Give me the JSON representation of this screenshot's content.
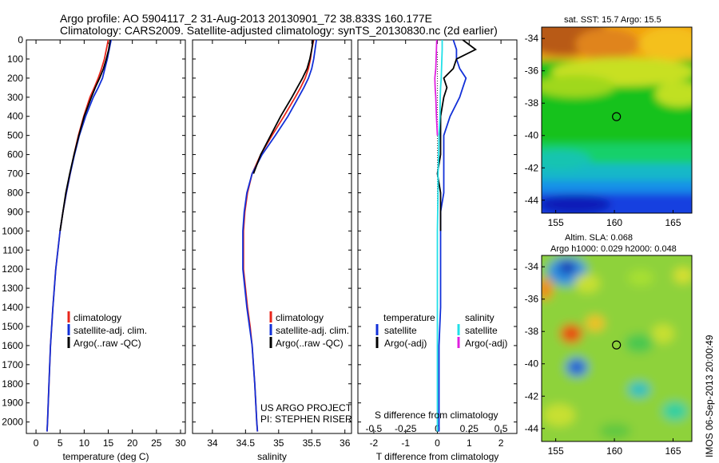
{
  "header": {
    "line1": "Argo profile: AO 5904117_2 31-Aug-2013 20130901_72 38.833S 160.177E",
    "line2": "Climatology: CARS2009. Satellite-adjusted climatology: synTS_20130830.nc (2d earlier)"
  },
  "vertical_stamp": "IMOS 06-Sep-2013 20:00:49",
  "colors": {
    "red": "#e8261b",
    "blue": "#1230d8",
    "black": "#000000",
    "cyan": "#22e0e8",
    "magenta": "#e020e0"
  },
  "chart_data": [
    {
      "type": "line",
      "xlabel": "temperature (deg C)",
      "xlim": [
        -2,
        31
      ],
      "ylim": [
        2060,
        0
      ],
      "xticks": [
        "0",
        "5",
        "10",
        "15",
        "20",
        "25",
        "30"
      ],
      "xtick_values": [
        0,
        5,
        10,
        15,
        20,
        25,
        30
      ],
      "yticks": [
        "0",
        "100",
        "200",
        "300",
        "400",
        "500",
        "600",
        "700",
        "800",
        "900",
        "1000",
        "1100",
        "1200",
        "1300",
        "1400",
        "1500",
        "1600",
        "1700",
        "1800",
        "1900",
        "2000"
      ],
      "legend": [
        "climatology",
        "satellite-adj. clim.",
        "Argo(..raw -QC)"
      ],
      "depth": [
        0,
        50,
        100,
        150,
        200,
        250,
        300,
        400,
        500,
        600,
        700,
        800,
        900,
        1000,
        1200,
        1400,
        1600,
        1800,
        2000,
        2050
      ],
      "series": [
        {
          "name": "climatology",
          "color": "red",
          "values": [
            15,
            14.6,
            14.2,
            13.6,
            12.9,
            12.1,
            11.2,
            9.9,
            8.8,
            7.9,
            7.1,
            6.3,
            5.6,
            5.0,
            4.1,
            3.5,
            3.0,
            2.7,
            2.4,
            2.3
          ]
        },
        {
          "name": "satellite-adj. clim.",
          "color": "blue",
          "values": [
            15.6,
            15.2,
            14.8,
            14.3,
            13.8,
            12.9,
            11.9,
            10.3,
            9.0,
            8.0,
            7.1,
            6.3,
            5.6,
            5.0,
            4.1,
            3.5,
            3.0,
            2.7,
            2.4,
            2.3
          ]
        },
        {
          "name": "Argo(..raw -QC)",
          "color": "black",
          "values": [
            15.4,
            15.1,
            14.6,
            14.0,
            13.2,
            12.3,
            11.5,
            10.0,
            8.9,
            7.9,
            7.0,
            6.2,
            5.6,
            5.0,
            null,
            null,
            null,
            null,
            null,
            null
          ]
        }
      ]
    },
    {
      "type": "line",
      "xlabel": "salinity",
      "xlim": [
        33.7,
        36.1
      ],
      "ylim": [
        2060,
        0
      ],
      "xticks": [
        "34",
        "34.5",
        "35",
        "35.5",
        "36"
      ],
      "xtick_values": [
        34,
        34.5,
        35,
        35.5,
        36
      ],
      "legend": [
        "climatology",
        "satellite-adj. clim.",
        "Argo(..raw -QC)"
      ],
      "annotation": [
        "US ARGO PROJECT",
        "PI: STEPHEN RISER"
      ],
      "depth": [
        0,
        50,
        100,
        150,
        200,
        250,
        300,
        400,
        500,
        600,
        700,
        800,
        900,
        1000,
        1100,
        1200,
        1300,
        1400,
        1500,
        1600,
        1800,
        2000,
        2050
      ],
      "series": [
        {
          "name": "climatology",
          "color": "red",
          "values": [
            35.53,
            35.5,
            35.48,
            35.45,
            35.4,
            35.33,
            35.25,
            35.08,
            34.9,
            34.73,
            34.6,
            34.53,
            34.49,
            34.47,
            34.47,
            34.47,
            34.5,
            34.53,
            34.57,
            34.6,
            34.64,
            34.67,
            34.68
          ]
        },
        {
          "name": "satellite-adj. clim.",
          "color": "blue",
          "values": [
            35.57,
            35.55,
            35.53,
            35.5,
            35.45,
            35.38,
            35.3,
            35.14,
            34.95,
            34.75,
            34.6,
            34.52,
            34.48,
            34.46,
            34.46,
            34.46,
            34.49,
            34.52,
            34.56,
            34.6,
            34.64,
            34.67,
            34.68
          ]
        },
        {
          "name": "Argo(..raw -QC)",
          "color": "black",
          "values": [
            35.52,
            35.5,
            35.47,
            35.43,
            35.36,
            35.28,
            35.2,
            35.03,
            34.88,
            34.73,
            34.62,
            null,
            null,
            null,
            null,
            null,
            null,
            null,
            null,
            null,
            null,
            null,
            null
          ]
        }
      ]
    },
    {
      "type": "line",
      "xlabel": "T difference from climatology",
      "xlabel_top": "S difference from climatology",
      "xlim": [
        -2.5,
        2.5
      ],
      "ylim": [
        2060,
        0
      ],
      "xticks": [
        "-2",
        "-1",
        "0",
        "1",
        "2"
      ],
      "xtick_values": [
        -2,
        -1,
        0,
        1,
        2
      ],
      "sticks": [
        "-0.5",
        "-0.25",
        "0",
        "0.25",
        "0.5"
      ],
      "stick_values": [
        -0.5,
        -0.25,
        0,
        0.25,
        0.5
      ],
      "legend_left_title": "temperature",
      "legend_left": [
        "satellite",
        "Argo(-adj)"
      ],
      "legend_right_title": "salinity",
      "legend_right": [
        "satellite",
        "Argo(-adj)"
      ],
      "depth": [
        0,
        50,
        100,
        150,
        200,
        250,
        300,
        400,
        500,
        600,
        700,
        800,
        900,
        1000,
        1200,
        1400,
        1600,
        1800,
        2000,
        2050
      ],
      "series": [
        {
          "name": "satellite",
          "group": "temperature",
          "color": "blue",
          "values": [
            0.5,
            0.6,
            0.6,
            0.7,
            0.9,
            0.8,
            0.7,
            0.4,
            0.2,
            0.2,
            0.2,
            0.2,
            0.1,
            0.1,
            0.1,
            0.1,
            0.05,
            0.05,
            0.05,
            0.05
          ]
        },
        {
          "name": "Argo(-adj)",
          "group": "temperature",
          "color": "black",
          "values": [
            0.8,
            1.2,
            0.6,
            0.5,
            0.2,
            0.3,
            0.2,
            0.1,
            0.1,
            0.1,
            0.0,
            0.1,
            0.1,
            0.1,
            null,
            null,
            null,
            null,
            null,
            null
          ]
        },
        {
          "name": "satellite",
          "group": "salinity",
          "color": "cyan",
          "values": [
            0.15,
            0.15,
            0.14,
            0.13,
            0.12,
            0.1,
            0.09,
            0.08,
            0.05,
            0.04,
            0.02,
            0.02,
            0.01,
            0.0,
            0.0,
            0.0,
            0.0,
            0.0,
            0.0,
            0.0
          ]
        },
        {
          "name": "Argo(-adj)",
          "group": "salinity",
          "color": "magenta",
          "values": [
            -0.02,
            -0.03,
            -0.04,
            -0.05,
            -0.08,
            -0.07,
            -0.05,
            -0.03,
            0.0,
            null,
            null,
            null,
            null,
            null,
            null,
            null,
            null,
            null,
            null,
            null
          ]
        }
      ]
    },
    {
      "type": "heatmap",
      "title": "sat. SST: 15.7 Argo: 15.5",
      "xlim": [
        153.8,
        166.6
      ],
      "ylim": [
        -44.8,
        -33.3
      ],
      "xticks": [
        "155",
        "160",
        "165"
      ],
      "xtick_values": [
        155,
        160,
        165
      ],
      "yticks": [
        "-34",
        "-36",
        "-38",
        "-40",
        "-42",
        "-44"
      ],
      "ytick_values": [
        -34,
        -36,
        -38,
        -40,
        -42,
        -44
      ],
      "float": {
        "lon": 160.177,
        "lat": -38.833
      }
    },
    {
      "type": "heatmap",
      "title": "Altim. SLA: 0.068",
      "subtitle": "Argo h1000: 0.029 h2000: 0.048",
      "xlim": [
        153.8,
        166.6
      ],
      "ylim": [
        -44.8,
        -33.3
      ],
      "xticks": [
        "155",
        "160",
        "165"
      ],
      "xtick_values": [
        155,
        160,
        165
      ],
      "yticks": [
        "-34",
        "-36",
        "-38",
        "-40",
        "-42",
        "-44"
      ],
      "ytick_values": [
        -34,
        -36,
        -38,
        -40,
        -42,
        -44
      ],
      "float": {
        "lon": 160.177,
        "lat": -38.833
      }
    }
  ]
}
